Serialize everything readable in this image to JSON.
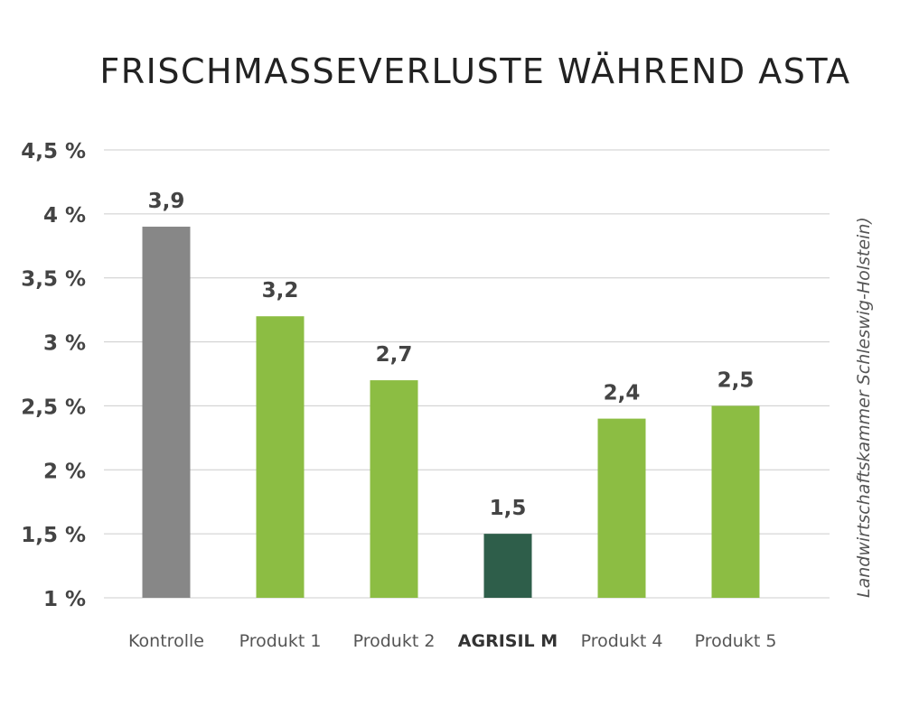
{
  "chart_data": {
    "type": "bar",
    "title": "FRISCHMASSEVERLUSTE WÄHREND ASTA",
    "categories": [
      "Kontrolle",
      "Produkt 1",
      "Produkt 2",
      "AGRISIL M",
      "Produkt 4",
      "Produkt 5"
    ],
    "values": [
      3.9,
      3.2,
      2.7,
      1.5,
      2.4,
      2.5
    ],
    "data_labels": [
      "3,9",
      "3,2",
      "2,7",
      "1,5",
      "2,4",
      "2,5"
    ],
    "highlight_category": "AGRISIL M",
    "y_ticks": [
      1,
      1.5,
      2,
      2.5,
      3,
      3.5,
      4,
      4.5
    ],
    "y_tick_labels": [
      "1 %",
      "1,5 %",
      "2 %",
      "2,5 %",
      "3 %",
      "3,5 %",
      "4 %",
      "4,5 %"
    ],
    "ylim": [
      1,
      4.5
    ],
    "grid": true,
    "legend": "none",
    "source_note": "Landwirtschaftskammer Schleswig-Holstein)",
    "bar_colors": [
      "#878787",
      "#8cbd43",
      "#8cbd43",
      "#2e5e4a",
      "#8cbd43",
      "#8cbd43"
    ],
    "colors": {
      "grid": "#cccccc",
      "title": "#222222",
      "text": "#444444"
    }
  }
}
